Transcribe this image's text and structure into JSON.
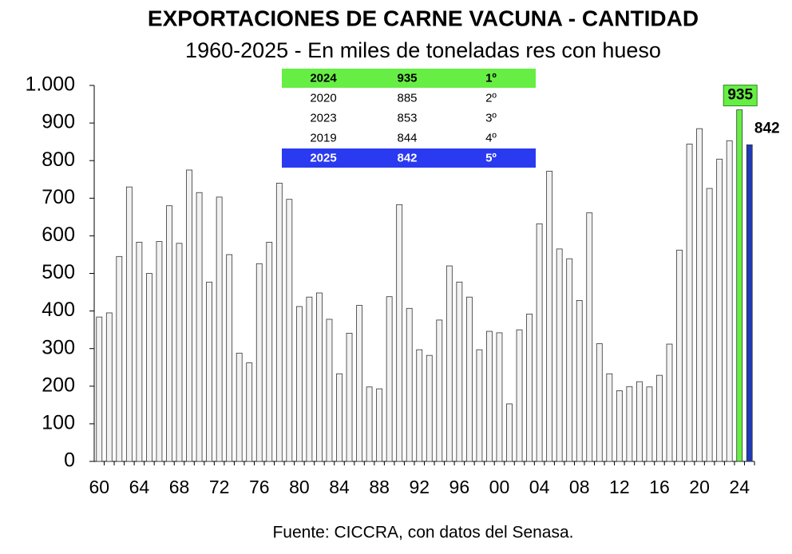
{
  "chart_data": {
    "type": "bar",
    "title": "EXPORTACIONES DE CARNE VACUNA - CANTIDAD",
    "subtitle": "1960-2025 - En miles de toneladas res con hueso",
    "categories": [
      "60",
      null,
      null,
      null,
      "64",
      null,
      null,
      null,
      "68",
      null,
      null,
      null,
      "72",
      null,
      null,
      null,
      "76",
      null,
      null,
      null,
      "80",
      null,
      null,
      null,
      "84",
      null,
      null,
      null,
      "88",
      null,
      null,
      null,
      "92",
      null,
      null,
      null,
      "96",
      null,
      null,
      null,
      "00",
      null,
      null,
      null,
      "04",
      null,
      null,
      null,
      "08",
      null,
      null,
      null,
      "12",
      null,
      null,
      null,
      "16",
      null,
      null,
      null,
      "20",
      null,
      null,
      null,
      "24",
      null
    ],
    "values": [
      384,
      395,
      545,
      730,
      583,
      500,
      585,
      680,
      580,
      775,
      715,
      477,
      703,
      550,
      288,
      262,
      526,
      583,
      740,
      697,
      412,
      437,
      448,
      378,
      233,
      341,
      415,
      198,
      193,
      438,
      683,
      407,
      297,
      282,
      376,
      520,
      477,
      437,
      297,
      346,
      342,
      153,
      350,
      392,
      632,
      772,
      565,
      539,
      428,
      661,
      313,
      233,
      188,
      199,
      212,
      198,
      229,
      312,
      562,
      844,
      885,
      726,
      804,
      853,
      935,
      842
    ],
    "colors": [
      "#f2f2f2",
      "#f2f2f2",
      "#f2f2f2",
      "#f2f2f2",
      "#f2f2f2",
      "#f2f2f2",
      "#f2f2f2",
      "#f2f2f2",
      "#f2f2f2",
      "#f2f2f2",
      "#f2f2f2",
      "#f2f2f2",
      "#f2f2f2",
      "#f2f2f2",
      "#f2f2f2",
      "#f2f2f2",
      "#f2f2f2",
      "#f2f2f2",
      "#f2f2f2",
      "#f2f2f2",
      "#f2f2f2",
      "#f2f2f2",
      "#f2f2f2",
      "#f2f2f2",
      "#f2f2f2",
      "#f2f2f2",
      "#f2f2f2",
      "#f2f2f2",
      "#f2f2f2",
      "#f2f2f2",
      "#f2f2f2",
      "#f2f2f2",
      "#f2f2f2",
      "#f2f2f2",
      "#f2f2f2",
      "#f2f2f2",
      "#f2f2f2",
      "#f2f2f2",
      "#f2f2f2",
      "#f2f2f2",
      "#f2f2f2",
      "#f2f2f2",
      "#f2f2f2",
      "#f2f2f2",
      "#f2f2f2",
      "#f2f2f2",
      "#f2f2f2",
      "#f2f2f2",
      "#f2f2f2",
      "#f2f2f2",
      "#f2f2f2",
      "#f2f2f2",
      "#f2f2f2",
      "#f2f2f2",
      "#f2f2f2",
      "#f2f2f2",
      "#f2f2f2",
      "#f2f2f2",
      "#f2f2f2",
      "#f2f2f2",
      "#f2f2f2",
      "#f2f2f2",
      "#f2f2f2",
      "#f2f2f2",
      "#66ee44",
      "#1f3ab8"
    ],
    "ylim": [
      0,
      1000
    ],
    "yticks": [
      0,
      100,
      200,
      300,
      400,
      500,
      600,
      700,
      800,
      900,
      {
        "value": 1000,
        "label": "1.000"
      }
    ],
    "table": {
      "rows": [
        [
          "2024",
          935,
          "1º"
        ],
        [
          "2020",
          885,
          "2º"
        ],
        [
          "2023",
          853,
          "3º"
        ],
        [
          "2019",
          844,
          "4º"
        ],
        [
          "2025",
          842,
          "5º"
        ]
      ],
      "row_colors": [
        "#66ee44",
        "#ffffff",
        "#ffffff",
        "#ffffff",
        "#2a3af0"
      ]
    },
    "note": "Fuente: CICCRA, con datos del Senasa."
  }
}
